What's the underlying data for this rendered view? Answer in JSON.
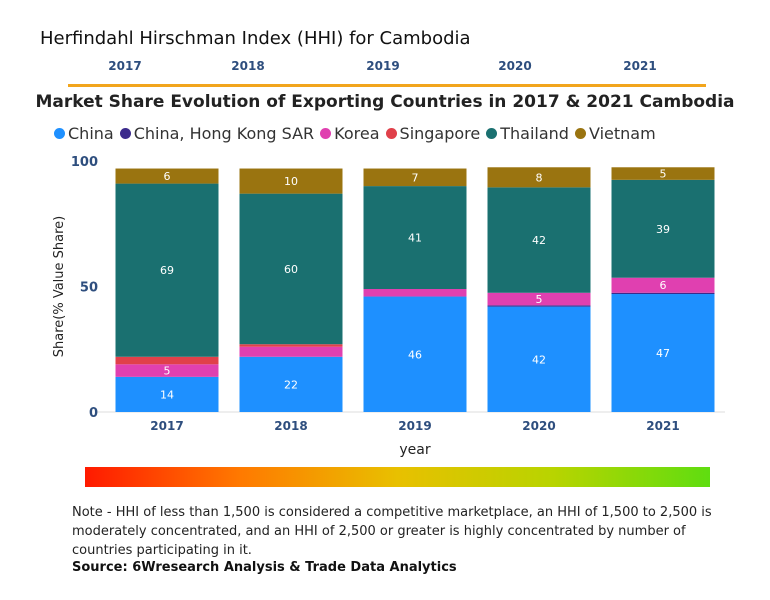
{
  "header": {
    "title": "Herfindahl Hirschman Index (HHI) for Cambodia",
    "hhi_years": [
      "2017",
      "2018",
      "2019",
      "2020",
      "2021"
    ]
  },
  "chart_data": {
    "type": "bar",
    "stacked": true,
    "title": "Market Share Evolution of Exporting Countries in 2017 & 2021 Cambodia",
    "xlabel": "year",
    "ylabel": "Share(% Value Share)",
    "ylim": [
      0,
      100
    ],
    "yticks": [
      0,
      50,
      100
    ],
    "categories": [
      "2017",
      "2018",
      "2019",
      "2020",
      "2021"
    ],
    "series": [
      {
        "name": "China",
        "color": "#1e90ff",
        "values": [
          14,
          22,
          46,
          42,
          47
        ],
        "labels": [
          "14",
          "22",
          "46",
          "42",
          "47"
        ]
      },
      {
        "name": "China, Hong Kong SAR",
        "color": "#3b2a8c",
        "values": [
          0,
          0,
          0,
          0.5,
          0.5
        ],
        "labels": [
          "",
          "",
          "",
          "",
          ""
        ]
      },
      {
        "name": "Korea",
        "color": "#e040b0",
        "values": [
          5,
          4,
          3,
          5,
          6
        ],
        "labels": [
          "5",
          "",
          "",
          "5",
          "6"
        ]
      },
      {
        "name": "Singapore",
        "color": "#e0404a",
        "values": [
          3,
          1,
          0,
          0,
          0
        ],
        "labels": [
          "",
          "",
          "",
          "",
          ""
        ]
      },
      {
        "name": "Thailand",
        "color": "#1a7070",
        "values": [
          69,
          60,
          41,
          42,
          39
        ],
        "labels": [
          "69",
          "60",
          "41",
          "42",
          "39"
        ]
      },
      {
        "name": "Vietnam",
        "color": "#9a7410",
        "values": [
          6,
          10,
          7,
          8,
          5
        ],
        "labels": [
          "6",
          "10",
          "7",
          "8",
          "5"
        ]
      }
    ]
  },
  "footer": {
    "note": "Note - HHI of less than 1,500 is considered a competitive marketplace, an HHI of 1,500 to 2,500 is moderately concentrated, and an HHI of 2,500 or greater is highly concentrated by number of countries participating in it.",
    "source": "Source: 6Wresearch Analysis & Trade Data Analytics"
  }
}
